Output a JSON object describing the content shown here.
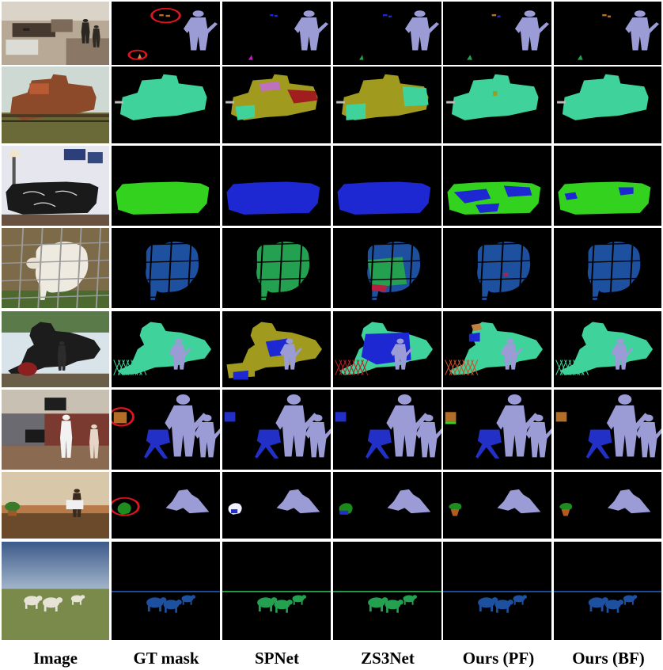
{
  "figure": {
    "columns": [
      {
        "key": "image",
        "label": "Image"
      },
      {
        "key": "gt",
        "label": "GT mask"
      },
      {
        "key": "spnet",
        "label": "SPNet"
      },
      {
        "key": "zs3net",
        "label": "ZS3Net"
      },
      {
        "key": "pf",
        "label": "Ours (PF)"
      },
      {
        "key": "bf",
        "label": "Ours (BF)"
      }
    ],
    "rows": [
      {
        "scene": "office-people",
        "highlight_in_gt": true
      },
      {
        "scene": "locomotive-yard",
        "highlight_in_gt": false
      },
      {
        "scene": "sofa-room",
        "highlight_in_gt": false
      },
      {
        "scene": "sheep-behind-fence",
        "highlight_in_gt": false
      },
      {
        "scene": "steam-train-person",
        "highlight_in_gt": false
      },
      {
        "scene": "living-room-children",
        "highlight_in_gt": true
      },
      {
        "scene": "person-with-plant",
        "highlight_in_gt": true
      },
      {
        "scene": "sheep-on-field",
        "highlight_in_gt": false
      }
    ]
  },
  "class_colors": {
    "person": "#9b9bd6",
    "train": "#3fd29b",
    "sofa_gt": "#32d21e",
    "sofa_wrong": "#1e28d2",
    "sheep": "#1e50a0",
    "sheep_wrong": "#23a050",
    "chair": "#2330c8",
    "tv": "#b46e28",
    "plant": "#1e8c1e",
    "pot": "#b45a23",
    "bus_wrong": "#a09a1e",
    "car_wrong": "#a01e1e",
    "highlight": "#e0141e"
  }
}
